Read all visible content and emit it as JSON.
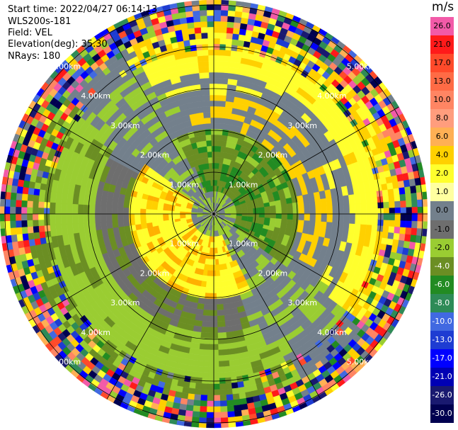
{
  "header": {
    "start_time": "Start time: 2022/04/27 06:14:13",
    "instrument": "WLS200s-181",
    "field": "Field: VEL",
    "elevation": "Elevation(deg): 35.30",
    "nrays": "NRays: 180"
  },
  "colorbar": {
    "unit": "m/s",
    "ticks": [
      "26.0",
      "21.0",
      "17.0",
      "13.0",
      "10.0",
      "8.0",
      "6.0",
      "4.0",
      "2.0",
      "1.0",
      "0.0",
      "-1.0",
      "-2.0",
      "-4.0",
      "-6.0",
      "-8.0",
      "-10.0",
      "-13.0",
      "-17.0",
      "-21.0",
      "-26.0",
      "-30.0"
    ],
    "colors": [
      "#f25aa8",
      "#ff1a1a",
      "#ff4a2a",
      "#ff6b45",
      "#ff8563",
      "#ff9d7d",
      "#ffb054",
      "#ffd000",
      "#ffff2d",
      "#ffffa0",
      "#73808c",
      "#6e6e6e",
      "#9acd32",
      "#6b8e23",
      "#228b22",
      "#2e8b57",
      "#4169e1",
      "#1e3cd2",
      "#0000ff",
      "#0000b4",
      "#191970",
      "#000050"
    ]
  },
  "chart_data": {
    "type": "heatmap",
    "projection": "polar PPI",
    "range_rings_km": [
      1.0,
      2.0,
      3.0,
      4.0,
      5.0
    ],
    "ring_labels": [
      "1.00km",
      "2.00km",
      "3.00km",
      "4.00km",
      "5.00km"
    ],
    "radial_lines_deg": [
      0,
      30,
      60,
      90,
      120,
      150
    ],
    "nrays": 180,
    "field": "VEL",
    "units": "m/s",
    "vmin": -30.0,
    "vmax": 26.0
  }
}
